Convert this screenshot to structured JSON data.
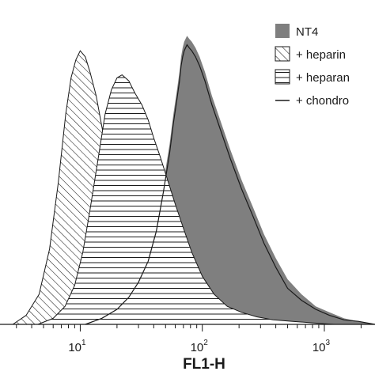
{
  "chart_data": {
    "type": "area",
    "title": "",
    "xlabel": "FL1-H",
    "ylabel": "",
    "xscale": "log",
    "xlim": [
      2.2,
      2600
    ],
    "ylim": [
      0,
      100
    ],
    "x_ticks": [
      {
        "value": 10,
        "base": "10",
        "exp": "1"
      },
      {
        "value": 100,
        "base": "10",
        "exp": "2"
      },
      {
        "value": 1000,
        "base": "10",
        "exp": "3"
      }
    ],
    "legend_position": "top-right",
    "series": [
      {
        "name": "NT4",
        "style": "solid-fill",
        "color": "#7f7f7f",
        "x": [
          11,
          15,
          20,
          25,
          30,
          36,
          42,
          48,
          54,
          58,
          62,
          65,
          67,
          69,
          71,
          73,
          75,
          78,
          82,
          88,
          95,
          105,
          120,
          140,
          170,
          210,
          260,
          320,
          400,
          500,
          650,
          850,
          1100,
          1450,
          1900,
          2600
        ],
        "y": [
          0,
          2,
          5,
          9,
          14,
          22,
          33,
          47,
          60,
          70,
          78,
          84,
          89,
          92,
          94,
          95,
          96,
          95,
          94,
          92,
          89,
          84,
          76,
          68,
          58,
          48,
          39,
          30,
          22,
          15,
          10,
          6,
          4,
          2,
          1,
          0
        ]
      },
      {
        "name": "+ heparin",
        "style": "diagonal-hatch",
        "color": "#1a1a1a",
        "x": [
          2.8,
          3.6,
          4.6,
          5.6,
          6.6,
          7.6,
          8.4,
          9.2,
          10,
          11,
          12,
          13.5,
          15,
          17,
          19,
          21,
          24,
          27,
          31,
          36,
          42,
          50,
          62,
          80,
          110,
          160
        ],
        "y": [
          0,
          3,
          10,
          25,
          47,
          70,
          82,
          88,
          91,
          89,
          84,
          76,
          66,
          54,
          43,
          33,
          24,
          17,
          11,
          7,
          4,
          2.5,
          1.5,
          1,
          0.5,
          0
        ]
      },
      {
        "name": "+ heparan",
        "style": "horizontal-hatch",
        "color": "#1a1a1a",
        "x": [
          4.5,
          6,
          7.5,
          9,
          10.5,
          12,
          14,
          16,
          18,
          20,
          22,
          25,
          28,
          32,
          36,
          40,
          45,
          52,
          60,
          70,
          82,
          100,
          125,
          160,
          210,
          280,
          380,
          550,
          800,
          1200
        ],
        "y": [
          0,
          2,
          6,
          13,
          24,
          38,
          55,
          70,
          78,
          82,
          83,
          81,
          77,
          73,
          68,
          62,
          56,
          48,
          40,
          32,
          24,
          16,
          10,
          6,
          4,
          2.5,
          1.5,
          1,
          0.5,
          0
        ]
      },
      {
        "name": "+ chondro",
        "style": "line",
        "color": "#1a1a1a",
        "x": [
          11,
          15,
          20,
          25,
          30,
          36,
          42,
          48,
          54,
          58,
          62,
          65,
          67,
          69,
          71,
          73,
          75,
          78,
          82,
          88,
          95,
          105,
          120,
          140,
          170,
          210,
          260,
          320,
          400,
          500,
          650,
          850,
          1100,
          1450,
          1900,
          2600
        ],
        "y": [
          0,
          2,
          5,
          9,
          14,
          21,
          31,
          44,
          57,
          67,
          75,
          81,
          86,
          89,
          91,
          92,
          93,
          92,
          91,
          89,
          86,
          81,
          73,
          65,
          55,
          45,
          36,
          27,
          19,
          12,
          8,
          5,
          3,
          1.5,
          1,
          0
        ]
      }
    ]
  }
}
